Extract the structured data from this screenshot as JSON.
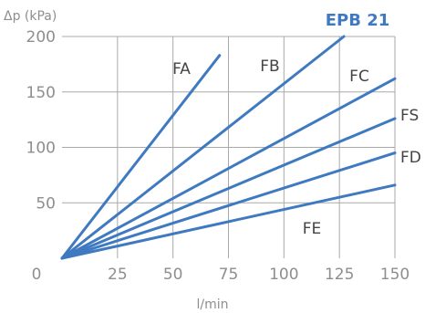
{
  "chart_data": {
    "type": "line",
    "title": "EPB 21",
    "xlabel": "l/min",
    "ylabel": "Δp (kPa)",
    "xlim": [
      0,
      150
    ],
    "ylim": [
      0,
      200
    ],
    "x_ticks": [
      "0",
      "25",
      "50",
      "75",
      "100",
      "125",
      "150"
    ],
    "y_ticks": [
      "200",
      "150",
      "100",
      "50"
    ],
    "grid": true,
    "colors": {
      "series": "#3f7ac1",
      "grid": "#a9a9a9",
      "tick_text": "#8e8e8e",
      "title": "#3f7ac1"
    },
    "series": [
      {
        "name": "FA",
        "x": [
          0,
          71
        ],
        "y": [
          0,
          183
        ]
      },
      {
        "name": "FB",
        "x": [
          0,
          127
        ],
        "y": [
          0,
          200
        ]
      },
      {
        "name": "FC",
        "x": [
          0,
          150
        ],
        "y": [
          0,
          162
        ]
      },
      {
        "name": "FS",
        "x": [
          0,
          150
        ],
        "y": [
          0,
          126
        ]
      },
      {
        "name": "FD",
        "x": [
          0,
          150
        ],
        "y": [
          0,
          95
        ]
      },
      {
        "name": "FE",
        "x": [
          0,
          150
        ],
        "y": [
          0,
          66
        ]
      }
    ]
  }
}
